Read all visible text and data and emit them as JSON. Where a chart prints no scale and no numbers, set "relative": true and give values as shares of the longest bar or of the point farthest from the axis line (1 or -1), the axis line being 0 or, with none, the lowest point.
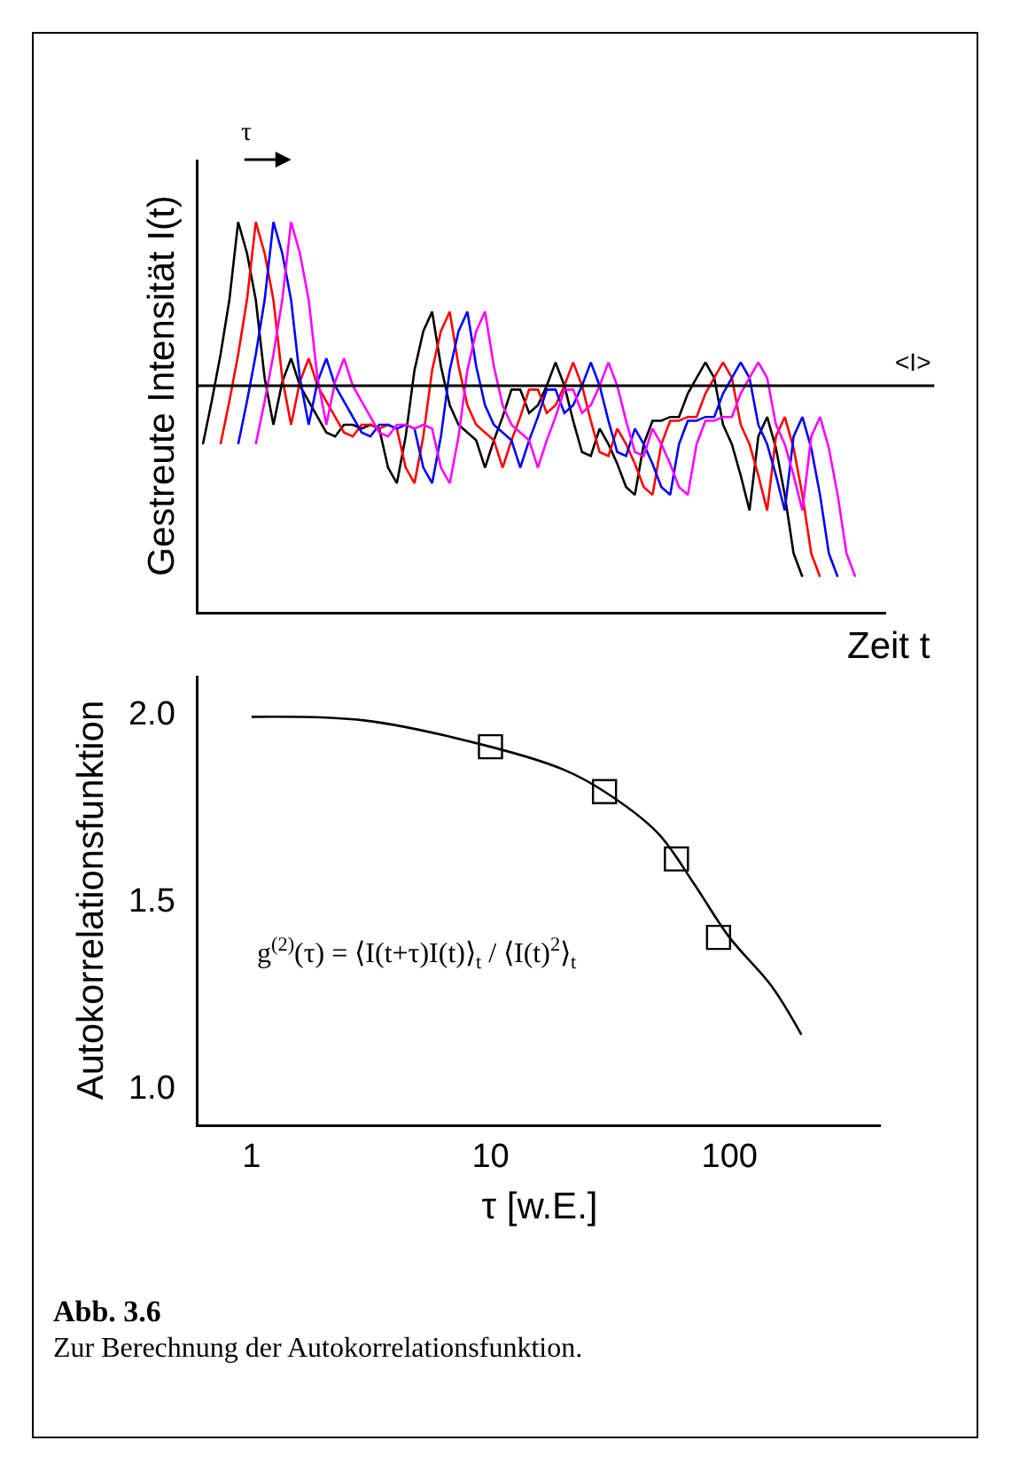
{
  "chart_data": [
    {
      "type": "line",
      "relative": true,
      "xlabel": "Zeit t",
      "ylabel": "Gestreute Intensität I(t)",
      "grid": false,
      "line_style": "solid",
      "annotations": [
        "τ"
      ],
      "ref_lines": [
        {
          "axis": "y",
          "value": 0.58,
          "label": "<I>",
          "color": "#000000"
        }
      ],
      "categories": [
        null,
        null,
        null,
        null,
        null,
        null,
        null,
        null,
        null,
        null,
        null,
        null,
        null,
        null,
        null,
        null,
        null,
        null,
        null,
        null,
        null,
        null,
        null,
        null,
        null,
        null,
        null,
        null,
        null,
        null,
        null,
        null,
        null,
        null,
        null,
        null,
        null,
        null,
        null,
        null,
        null,
        null,
        null,
        null,
        null,
        null,
        null,
        null,
        null,
        null,
        null,
        null,
        null,
        null,
        null,
        null,
        null,
        null,
        null,
        null,
        null,
        null,
        null,
        null,
        null,
        null,
        null,
        null,
        null,
        null,
        null,
        null,
        null,
        null,
        null,
        null,
        null,
        null
      ],
      "series": [
        {
          "color": "#000000",
          "values": [
            0.43,
            0.54,
            0.66,
            0.8,
            1.0,
            0.92,
            0.8,
            0.6,
            0.48,
            0.59,
            0.65,
            0.58,
            0.54,
            0.5,
            0.46,
            0.45,
            0.48,
            0.48,
            0.47,
            0.48,
            0.47,
            0.37,
            0.33,
            0.45,
            0.62,
            0.72,
            0.77,
            0.63,
            0.53,
            0.48,
            0.46,
            0.44,
            0.37,
            0.44,
            0.5,
            0.57,
            0.57,
            0.51,
            0.53,
            0.58,
            0.64,
            0.58,
            0.49,
            0.41,
            0.4,
            0.47,
            0.43,
            0.38,
            0.32,
            0.3,
            0.43,
            0.49,
            0.49,
            0.5,
            0.5,
            0.56,
            0.6,
            0.64,
            0.6,
            0.48,
            0.43,
            0.35,
            0.26,
            0.45,
            0.5,
            0.42,
            0.3,
            0.15,
            0.09,
            null,
            null,
            null,
            null,
            null,
            null,
            null,
            null,
            null
          ]
        },
        {
          "color": "#ff0000",
          "values": [
            null,
            null,
            0.43,
            0.54,
            0.66,
            0.8,
            1.0,
            0.92,
            0.8,
            0.6,
            0.48,
            0.59,
            0.65,
            0.58,
            0.54,
            0.5,
            0.46,
            0.45,
            0.48,
            0.48,
            0.47,
            0.48,
            0.47,
            0.37,
            0.33,
            0.45,
            0.62,
            0.72,
            0.77,
            0.63,
            0.53,
            0.48,
            0.46,
            0.44,
            0.37,
            0.44,
            0.5,
            0.57,
            0.57,
            0.51,
            0.53,
            0.58,
            0.64,
            0.58,
            0.49,
            0.41,
            0.4,
            0.47,
            0.43,
            0.38,
            0.32,
            0.3,
            0.43,
            0.49,
            0.49,
            0.5,
            0.5,
            0.56,
            0.6,
            0.64,
            0.6,
            0.48,
            0.43,
            0.35,
            0.26,
            0.45,
            0.5,
            0.42,
            0.3,
            0.15,
            0.09,
            null,
            null,
            null,
            null,
            null,
            null,
            null
          ]
        },
        {
          "color": "#0000ff",
          "values": [
            null,
            null,
            null,
            null,
            0.43,
            0.54,
            0.66,
            0.8,
            1.0,
            0.92,
            0.8,
            0.6,
            0.48,
            0.59,
            0.65,
            0.58,
            0.54,
            0.5,
            0.46,
            0.45,
            0.48,
            0.48,
            0.47,
            0.48,
            0.47,
            0.37,
            0.33,
            0.45,
            0.62,
            0.72,
            0.77,
            0.63,
            0.53,
            0.48,
            0.46,
            0.44,
            0.37,
            0.44,
            0.5,
            0.57,
            0.57,
            0.51,
            0.53,
            0.58,
            0.64,
            0.58,
            0.49,
            0.41,
            0.4,
            0.47,
            0.43,
            0.38,
            0.32,
            0.3,
            0.43,
            0.49,
            0.49,
            0.5,
            0.5,
            0.56,
            0.6,
            0.64,
            0.6,
            0.48,
            0.43,
            0.35,
            0.26,
            0.45,
            0.5,
            0.42,
            0.3,
            0.15,
            0.09,
            null,
            null,
            null,
            null,
            null
          ]
        },
        {
          "color": "#ff00ff",
          "values": [
            null,
            null,
            null,
            null,
            null,
            null,
            0.43,
            0.54,
            0.66,
            0.8,
            1.0,
            0.92,
            0.8,
            0.6,
            0.48,
            0.59,
            0.65,
            0.58,
            0.54,
            0.5,
            0.46,
            0.45,
            0.48,
            0.48,
            0.47,
            0.48,
            0.47,
            0.37,
            0.33,
            0.45,
            0.62,
            0.72,
            0.77,
            0.63,
            0.53,
            0.48,
            0.46,
            0.44,
            0.37,
            0.44,
            0.5,
            0.57,
            0.57,
            0.51,
            0.53,
            0.58,
            0.64,
            0.58,
            0.49,
            0.41,
            0.4,
            0.47,
            0.43,
            0.38,
            0.32,
            0.3,
            0.43,
            0.49,
            0.49,
            0.5,
            0.5,
            0.56,
            0.6,
            0.64,
            0.6,
            0.48,
            0.43,
            0.35,
            0.26,
            0.45,
            0.5,
            0.42,
            0.3,
            0.15,
            0.09,
            null,
            null,
            null
          ]
        }
      ]
    },
    {
      "type": "scatter",
      "xlabel": "τ [w.E.]",
      "ylabel": "Autokorrelationsfunktion",
      "log": "x",
      "grid": false,
      "xlim": [
        0.6,
        430
      ],
      "xticks": [
        1,
        10,
        100
      ],
      "ylim": [
        0.9,
        2.1
      ],
      "yticks": [
        {
          "value": 1,
          "label": "1.0"
        },
        {
          "value": 1.5,
          "label": "1.5"
        },
        {
          "value": 2,
          "label": "2.0"
        }
      ],
      "annotations": [
        "g$^{(2)}$(τ) = ⟨I(t+τ)I(t)⟩$_{t}$ / ⟨I(t)$^{2}$⟩$_{t}$",
        "Abb. 3.6",
        "Zur Berechnung der Autokorrelationsfunktion."
      ],
      "series": [
        {
          "marker": "square",
          "color": "#000000",
          "x": [
            10,
            30,
            60,
            90
          ],
          "values": [
            1.91,
            1.79,
            1.61,
            1.4
          ]
        },
        {
          "type": "line",
          "marker": "none",
          "color": "#000000",
          "x": [
            1,
            3,
            10,
            20,
            30,
            50,
            70,
            100,
            150,
            200
          ],
          "values": [
            1.99,
            1.98,
            1.91,
            1.85,
            1.79,
            1.68,
            1.55,
            1.4,
            1.27,
            1.14
          ]
        }
      ]
    }
  ]
}
